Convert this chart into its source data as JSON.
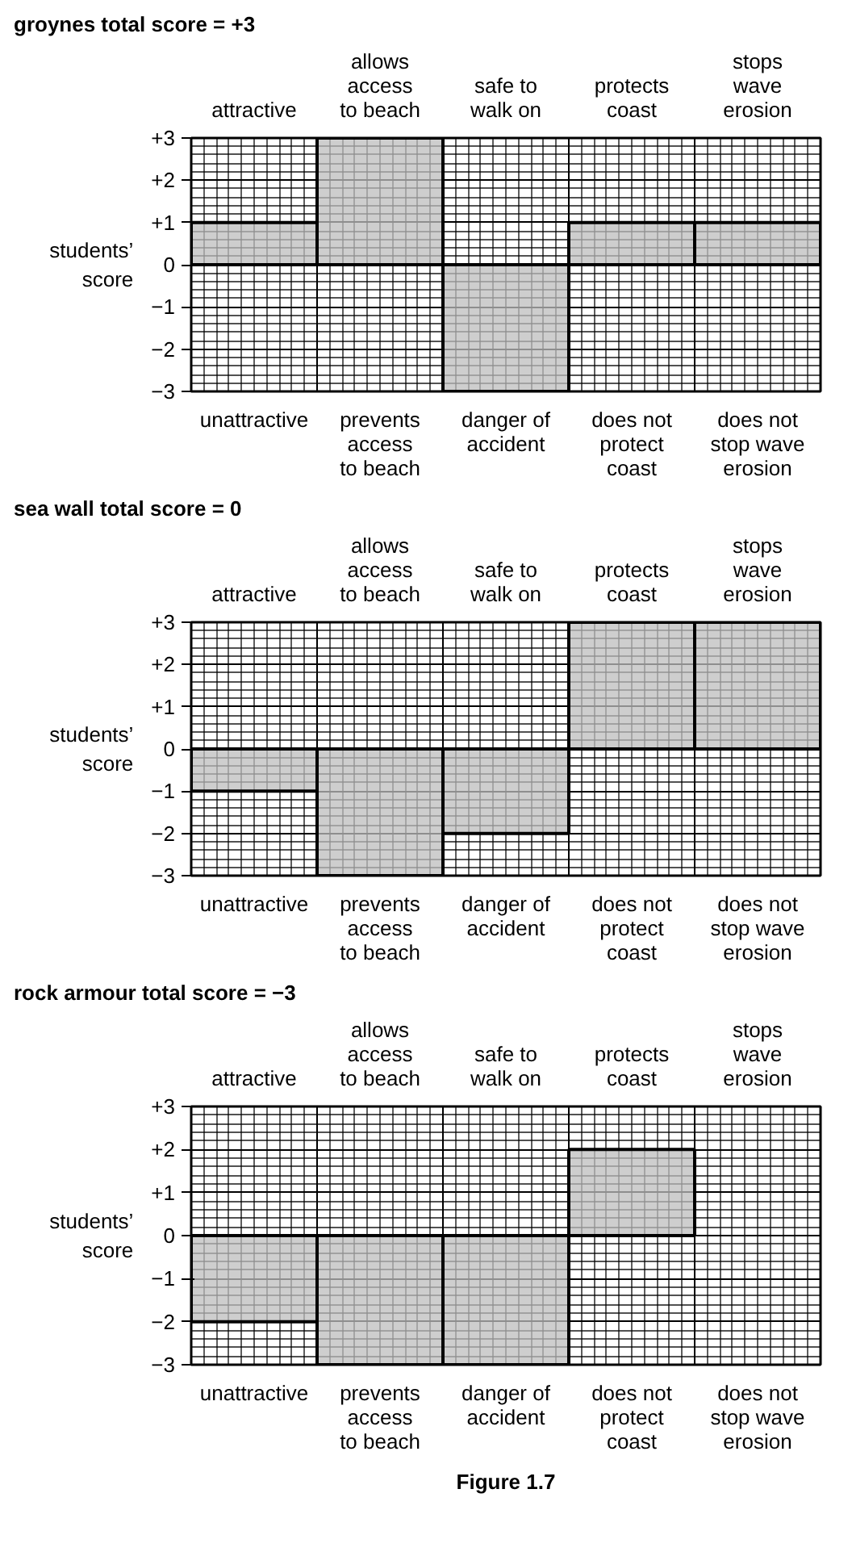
{
  "chart_data": [
    {
      "type": "bar",
      "title": "groynes total score = +3",
      "ylabel": "students’ score",
      "categories": [
        "unattractive",
        "prevents\naccess\nto beach",
        "danger of\naccident",
        "does not\nprotect\ncoast",
        "does not\nstop wave\nerosion"
      ],
      "values": [
        1,
        3,
        -3,
        1,
        1
      ],
      "color": "#bdbdbd",
      "ylim": [
        -3,
        3
      ],
      "yticks": [
        {
          "value": 3,
          "label": "+3"
        },
        {
          "value": 2,
          "label": "+2"
        },
        {
          "value": 1,
          "label": "+1"
        },
        0,
        {
          "value": -1,
          "label": "−1"
        },
        {
          "value": -2,
          "label": "−2"
        },
        {
          "value": -3,
          "label": "−3"
        }
      ],
      "grid": true,
      "annotations": [
        "attractive",
        "allows\naccess\nto beach",
        "safe to\nwalk on",
        "protects\ncoast",
        "stops\nwave\nerosion"
      ]
    },
    {
      "type": "bar",
      "title": "sea wall total score = 0",
      "ylabel": "students’ score",
      "categories": [
        "unattractive",
        "prevents\naccess\nto beach",
        "danger of\naccident",
        "does not\nprotect\ncoast",
        "does not\nstop wave\nerosion"
      ],
      "values": [
        -1,
        -3,
        -2,
        3,
        3
      ],
      "color": "#bdbdbd",
      "ylim": [
        -3,
        3
      ],
      "yticks": [
        {
          "value": 3,
          "label": "+3"
        },
        {
          "value": 2,
          "label": "+2"
        },
        {
          "value": 1,
          "label": "+1"
        },
        0,
        {
          "value": -1,
          "label": "−1"
        },
        {
          "value": -2,
          "label": "−2"
        },
        {
          "value": -3,
          "label": "−3"
        }
      ],
      "grid": true,
      "annotations": [
        "attractive",
        "allows\naccess\nto beach",
        "safe to\nwalk on",
        "protects\ncoast",
        "stops\nwave\nerosion"
      ]
    },
    {
      "type": "bar",
      "title": "rock armour total score = −3",
      "ylabel": "students’ score",
      "categories": [
        "unattractive",
        "prevents\naccess\nto beach",
        "danger of\naccident",
        "does not\nprotect\ncoast",
        "does not\nstop wave\nerosion"
      ],
      "values": [
        -2,
        -3,
        -3,
        2,
        null
      ],
      "color": "#bdbdbd",
      "ylim": [
        -3,
        3
      ],
      "yticks": [
        {
          "value": 3,
          "label": "+3"
        },
        {
          "value": 2,
          "label": "+2"
        },
        {
          "value": 1,
          "label": "+1"
        },
        0,
        {
          "value": -1,
          "label": "−1"
        },
        {
          "value": -2,
          "label": "−2"
        },
        {
          "value": -3,
          "label": "−3"
        }
      ],
      "grid": true,
      "annotations": [
        "attractive",
        "allows\naccess\nto beach",
        "safe to\nwalk on",
        "protects\ncoast",
        "stops\nwave\nerosion",
        "Figure 1.7"
      ]
    }
  ]
}
